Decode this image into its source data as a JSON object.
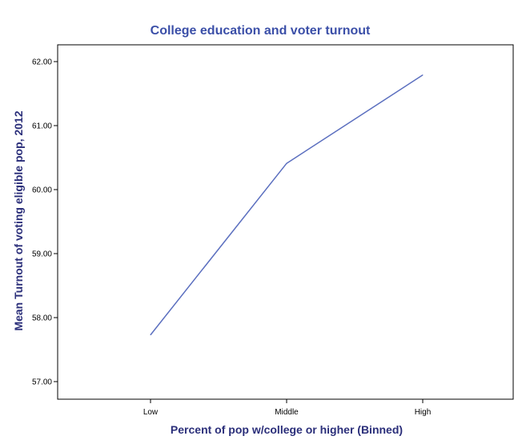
{
  "chart_data": {
    "type": "line",
    "title": "College education and voter turnout",
    "xlabel": "Percent of pop w/college or higher (Binned)",
    "ylabel": "Mean Turnout of voting eligible pop, 2012",
    "categories": [
      "Low",
      "Middle",
      "High"
    ],
    "series": [
      {
        "name": "Mean Turnout",
        "values": [
          57.73,
          60.41,
          61.79
        ]
      }
    ],
    "ylim": [
      57.0,
      62.0
    ],
    "yticks": [
      57.0,
      58.0,
      59.0,
      60.0,
      61.0,
      62.0
    ],
    "ytick_labels": [
      "57.00",
      "58.00",
      "59.00",
      "60.00",
      "61.00",
      "62.00"
    ],
    "grid": false,
    "colors": {
      "line": "#5b6fbf",
      "title": "#3b4fa8",
      "axis_label": "#2b2f7a",
      "frame": "#000000"
    }
  }
}
